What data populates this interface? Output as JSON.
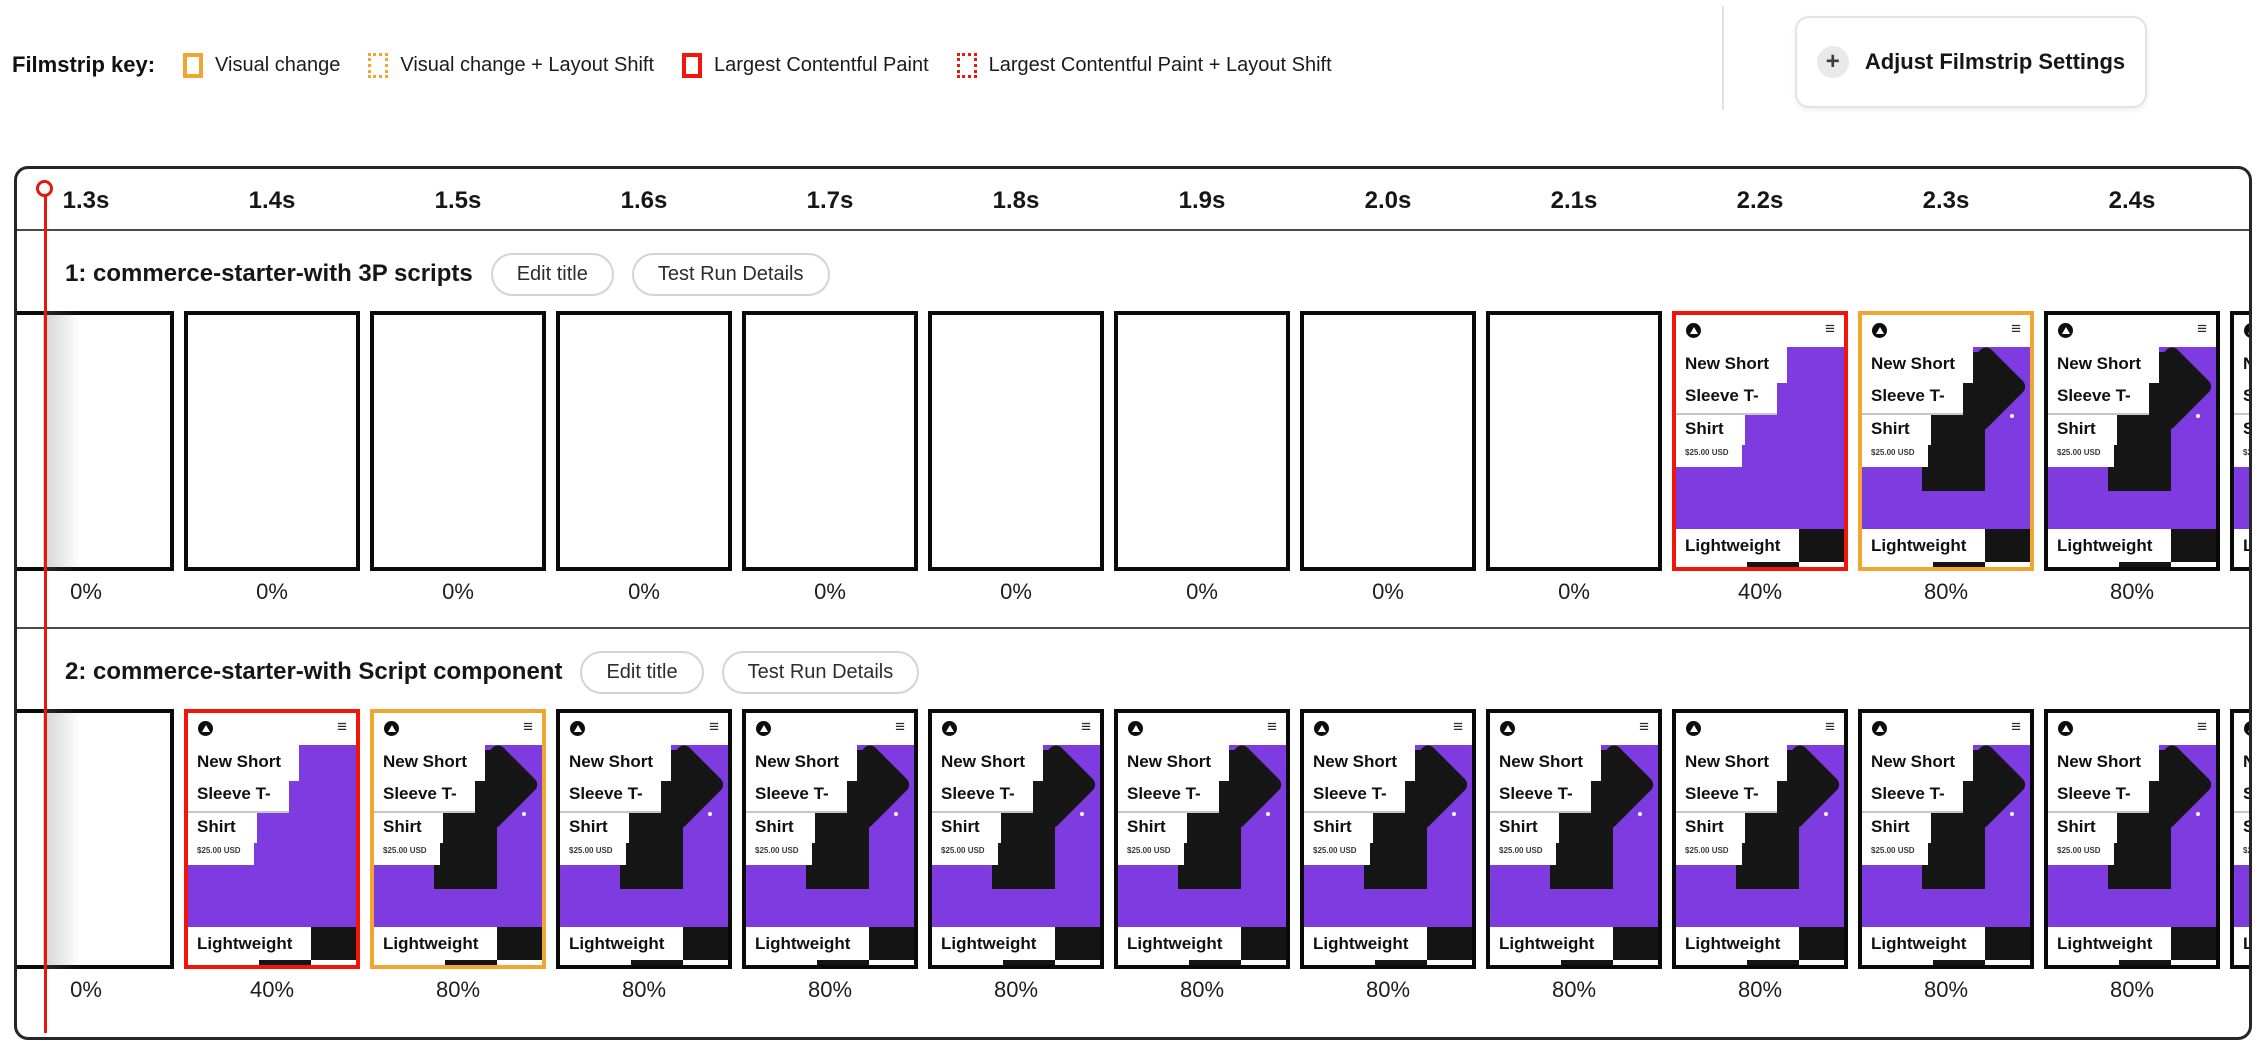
{
  "legend": {
    "title": "Filmstrip key:",
    "items": [
      {
        "label": "Visual change",
        "color": "#f0a62f",
        "style": "solid"
      },
      {
        "label": "Visual change + Layout Shift",
        "color": "#f0a62f",
        "style": "dotted"
      },
      {
        "label": "Largest Contentful Paint",
        "color": "#f0170a",
        "style": "solid"
      },
      {
        "label": "Largest Contentful Paint + Layout Shift",
        "color": "#f0170a",
        "style": "dotted"
      }
    ]
  },
  "settings_button": {
    "label": "Adjust Filmstrip Settings"
  },
  "icons": {
    "plus": "+",
    "menu": "≡"
  },
  "timeline": {
    "ticks": [
      "1.3s",
      "1.4s",
      "1.5s",
      "1.6s",
      "1.7s",
      "1.8s",
      "1.9s",
      "2.0s",
      "2.1s",
      "2.2s",
      "2.3s",
      "2.4s"
    ]
  },
  "highlight_colors": {
    "default": "#0a0a0a",
    "lcp": "#f0170a",
    "visual": "#f0a62f"
  },
  "thumbnail": {
    "purple": "#7d3be0",
    "title_lines": [
      "New Short",
      "Sleeve T-",
      "Shirt"
    ],
    "price": "$25.00 USD",
    "footer": "Lightweight"
  },
  "runs": [
    {
      "title": "1: commerce-starter-with 3P scripts",
      "edit_button": "Edit title",
      "details_button": "Test Run Details",
      "frames": [
        {
          "content": "blank",
          "border": "default",
          "percent": "0%"
        },
        {
          "content": "blank",
          "border": "default",
          "percent": "0%"
        },
        {
          "content": "blank",
          "border": "default",
          "percent": "0%"
        },
        {
          "content": "blank",
          "border": "default",
          "percent": "0%"
        },
        {
          "content": "blank",
          "border": "default",
          "percent": "0%"
        },
        {
          "content": "blank",
          "border": "default",
          "percent": "0%"
        },
        {
          "content": "blank",
          "border": "default",
          "percent": "0%"
        },
        {
          "content": "blank",
          "border": "default",
          "percent": "0%"
        },
        {
          "content": "blank",
          "border": "default",
          "percent": "0%"
        },
        {
          "content": "p40",
          "border": "lcp",
          "percent": "40%"
        },
        {
          "content": "p80",
          "border": "visual",
          "percent": "80%"
        },
        {
          "content": "p80",
          "border": "default",
          "percent": "80%"
        },
        {
          "content": "p80",
          "border": "default",
          "percent": "",
          "partial": true
        }
      ]
    },
    {
      "title": "2: commerce-starter-with Script component",
      "edit_button": "Edit title",
      "details_button": "Test Run Details",
      "frames": [
        {
          "content": "blank",
          "border": "default",
          "percent": "0%"
        },
        {
          "content": "p40",
          "border": "lcp",
          "percent": "40%"
        },
        {
          "content": "p80",
          "border": "visual",
          "percent": "80%"
        },
        {
          "content": "p80",
          "border": "default",
          "percent": "80%"
        },
        {
          "content": "p80",
          "border": "default",
          "percent": "80%"
        },
        {
          "content": "p80",
          "border": "default",
          "percent": "80%"
        },
        {
          "content": "p80",
          "border": "default",
          "percent": "80%"
        },
        {
          "content": "p80",
          "border": "default",
          "percent": "80%"
        },
        {
          "content": "p80",
          "border": "default",
          "percent": "80%"
        },
        {
          "content": "p80",
          "border": "default",
          "percent": "80%"
        },
        {
          "content": "p80",
          "border": "default",
          "percent": "80%"
        },
        {
          "content": "p80",
          "border": "default",
          "percent": "80%"
        },
        {
          "content": "p80",
          "border": "default",
          "percent": "",
          "partial": true
        }
      ]
    }
  ]
}
